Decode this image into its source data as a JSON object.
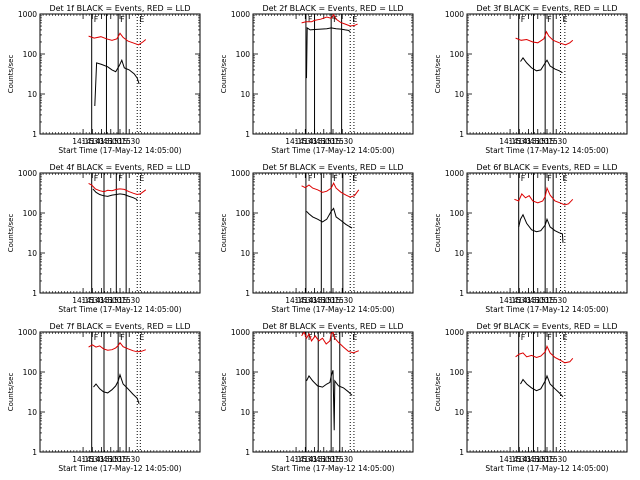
{
  "chart_data": {
    "type": "line",
    "y_scale": "log",
    "ylim": [
      1,
      1000
    ],
    "y_ticks": [
      "1",
      "10",
      "100",
      "1000"
    ],
    "x_ticks": [
      "14:15",
      "14:30",
      "14:45",
      "15:00",
      "15:15",
      "15:30"
    ],
    "xlim_minutes": [
      -55,
      205
    ],
    "tick_minutes": [
      15,
      30,
      45,
      60,
      75,
      90
    ],
    "ylabel": "Counts/sec",
    "xlabel": "Start Time (17-May-12 14:05:00)",
    "colors": {
      "events": "#000000",
      "lld": "#dd0000"
    },
    "flag_labels": [
      "F",
      "F",
      "E"
    ],
    "panels": [
      {
        "title": "Det 1f BLACK = Events, RED = LLD",
        "solid_lines": [
          29,
          53,
          72,
          85
        ],
        "dotted_lines": [
          103,
          108
        ],
        "events": [
          [
            34,
            5
          ],
          [
            37,
            60
          ],
          [
            45,
            55
          ],
          [
            55,
            48
          ],
          [
            62,
            40
          ],
          [
            68,
            36
          ],
          [
            74,
            52
          ],
          [
            78,
            70
          ],
          [
            82,
            45
          ],
          [
            90,
            40
          ],
          [
            98,
            32
          ],
          [
            103,
            25
          ],
          [
            106,
            18
          ]
        ],
        "lld": [
          [
            24,
            280
          ],
          [
            33,
            250
          ],
          [
            44,
            270
          ],
          [
            53,
            240
          ],
          [
            62,
            220
          ],
          [
            70,
            240
          ],
          [
            75,
            330
          ],
          [
            80,
            260
          ],
          [
            88,
            210
          ],
          [
            96,
            190
          ],
          [
            105,
            170
          ],
          [
            112,
            200
          ],
          [
            117,
            230
          ]
        ]
      },
      {
        "title": "Det 2f BLACK = Events, RED = LLD",
        "solid_lines": [
          31,
          45,
          72,
          89
        ],
        "dotted_lines": [
          103,
          109
        ],
        "events": [
          [
            32,
            25
          ],
          [
            33,
            450
          ],
          [
            38,
            400
          ],
          [
            45,
            410
          ],
          [
            55,
            420
          ],
          [
            65,
            430
          ],
          [
            72,
            450
          ],
          [
            80,
            430
          ],
          [
            88,
            420
          ],
          [
            95,
            400
          ],
          [
            100,
            390
          ],
          [
            103,
            360
          ]
        ],
        "lld": [
          [
            24,
            600
          ],
          [
            31,
            640
          ],
          [
            40,
            640
          ],
          [
            45,
            690
          ],
          [
            55,
            740
          ],
          [
            65,
            840
          ],
          [
            72,
            780
          ],
          [
            76,
            970
          ],
          [
            80,
            740
          ],
          [
            88,
            610
          ],
          [
            95,
            560
          ],
          [
            103,
            500
          ],
          [
            110,
            520
          ],
          [
            115,
            560
          ]
        ]
      },
      {
        "title": "Det 3f BLACK = Events, RED = LLD",
        "solid_lines": [
          29,
          53,
          72,
          85
        ],
        "dotted_lines": [
          97,
          104
        ],
        "events": [
          [
            32,
            65
          ],
          [
            36,
            80
          ],
          [
            42,
            60
          ],
          [
            50,
            45
          ],
          [
            58,
            38
          ],
          [
            65,
            40
          ],
          [
            72,
            60
          ],
          [
            75,
            70
          ],
          [
            80,
            50
          ],
          [
            88,
            42
          ],
          [
            95,
            38
          ],
          [
            100,
            34
          ]
        ],
        "lld": [
          [
            24,
            250
          ],
          [
            33,
            220
          ],
          [
            42,
            230
          ],
          [
            52,
            200
          ],
          [
            60,
            190
          ],
          [
            70,
            240
          ],
          [
            74,
            360
          ],
          [
            78,
            280
          ],
          [
            85,
            220
          ],
          [
            95,
            190
          ],
          [
            105,
            170
          ],
          [
            112,
            190
          ],
          [
            117,
            220
          ]
        ]
      },
      {
        "title": "Det 4f BLACK = Events, RED = LLD",
        "solid_lines": [
          29,
          49,
          69,
          85
        ],
        "dotted_lines": [
          103,
          108
        ],
        "events": [
          [
            31,
            400
          ],
          [
            36,
            330
          ],
          [
            42,
            290
          ],
          [
            48,
            270
          ],
          [
            55,
            260
          ],
          [
            62,
            280
          ],
          [
            69,
            290
          ],
          [
            75,
            300
          ],
          [
            82,
            290
          ],
          [
            90,
            260
          ],
          [
            97,
            240
          ],
          [
            102,
            220
          ],
          [
            103,
            200
          ]
        ],
        "lld": [
          [
            24,
            550
          ],
          [
            29,
            500
          ],
          [
            35,
            400
          ],
          [
            42,
            360
          ],
          [
            49,
            340
          ],
          [
            55,
            370
          ],
          [
            62,
            360
          ],
          [
            69,
            390
          ],
          [
            75,
            400
          ],
          [
            82,
            390
          ],
          [
            90,
            340
          ],
          [
            97,
            310
          ],
          [
            103,
            290
          ],
          [
            108,
            300
          ],
          [
            114,
            350
          ],
          [
            117,
            380
          ]
        ]
      },
      {
        "title": "Det 5f BLACK = Events, RED = LLD",
        "solid_lines": [
          31,
          56,
          72,
          91
        ],
        "dotted_lines": [
          103,
          109
        ],
        "events": [
          [
            32,
            110
          ],
          [
            36,
            95
          ],
          [
            42,
            80
          ],
          [
            50,
            70
          ],
          [
            58,
            60
          ],
          [
            65,
            70
          ],
          [
            72,
            110
          ],
          [
            76,
            130
          ],
          [
            80,
            80
          ],
          [
            88,
            65
          ],
          [
            96,
            52
          ],
          [
            103,
            45
          ],
          [
            106,
            42
          ]
        ],
        "lld": [
          [
            24,
            480
          ],
          [
            30,
            430
          ],
          [
            36,
            500
          ],
          [
            42,
            420
          ],
          [
            50,
            380
          ],
          [
            58,
            330
          ],
          [
            65,
            350
          ],
          [
            72,
            420
          ],
          [
            76,
            560
          ],
          [
            80,
            420
          ],
          [
            88,
            330
          ],
          [
            96,
            280
          ],
          [
            103,
            250
          ],
          [
            110,
            270
          ],
          [
            117,
            380
          ]
        ]
      },
      {
        "title": "Det 6f BLACK = Events, RED = LLD",
        "solid_lines": [
          29,
          53,
          72,
          85
        ],
        "dotted_lines": [
          97,
          104
        ],
        "events": [
          [
            29,
            45
          ],
          [
            32,
            70
          ],
          [
            36,
            90
          ],
          [
            42,
            55
          ],
          [
            50,
            38
          ],
          [
            58,
            34
          ],
          [
            65,
            36
          ],
          [
            72,
            50
          ],
          [
            75,
            70
          ],
          [
            80,
            45
          ],
          [
            88,
            36
          ],
          [
            95,
            32
          ],
          [
            100,
            30
          ],
          [
            101,
            18
          ]
        ],
        "lld": [
          [
            22,
            220
          ],
          [
            29,
            200
          ],
          [
            34,
            300
          ],
          [
            40,
            240
          ],
          [
            46,
            270
          ],
          [
            52,
            200
          ],
          [
            60,
            180
          ],
          [
            68,
            200
          ],
          [
            72,
            260
          ],
          [
            75,
            420
          ],
          [
            80,
            280
          ],
          [
            88,
            200
          ],
          [
            96,
            180
          ],
          [
            104,
            160
          ],
          [
            110,
            170
          ],
          [
            117,
            220
          ]
        ]
      },
      {
        "title": "Det 7f BLACK = Events, RED = LLD",
        "solid_lines": [
          29,
          49,
          72,
          85
        ],
        "dotted_lines": [
          103,
          108
        ],
        "events": [
          [
            32,
            42
          ],
          [
            36,
            50
          ],
          [
            42,
            38
          ],
          [
            48,
            32
          ],
          [
            55,
            30
          ],
          [
            62,
            36
          ],
          [
            68,
            45
          ],
          [
            72,
            60
          ],
          [
            75,
            85
          ],
          [
            80,
            50
          ],
          [
            88,
            38
          ],
          [
            96,
            28
          ],
          [
            103,
            22
          ],
          [
            106,
            16
          ]
        ],
        "lld": [
          [
            24,
            420
          ],
          [
            30,
            480
          ],
          [
            36,
            420
          ],
          [
            42,
            450
          ],
          [
            48,
            380
          ],
          [
            55,
            350
          ],
          [
            62,
            360
          ],
          [
            68,
            400
          ],
          [
            72,
            460
          ],
          [
            75,
            540
          ],
          [
            80,
            430
          ],
          [
            88,
            380
          ],
          [
            96,
            340
          ],
          [
            103,
            320
          ],
          [
            110,
            330
          ],
          [
            117,
            360
          ]
        ]
      },
      {
        "title": "Det 8f BLACK = Events, RED = LLD",
        "solid_lines": [
          31,
          51,
          72,
          86
        ],
        "dotted_lines": [
          103,
          109
        ],
        "events": [
          [
            32,
            60
          ],
          [
            36,
            80
          ],
          [
            42,
            60
          ],
          [
            50,
            45
          ],
          [
            58,
            42
          ],
          [
            65,
            50
          ],
          [
            70,
            55
          ],
          [
            72,
            80
          ],
          [
            75,
            110
          ],
          [
            77,
            3.5
          ],
          [
            78,
            60
          ],
          [
            84,
            45
          ],
          [
            92,
            40
          ],
          [
            100,
            32
          ],
          [
            106,
            26
          ]
        ],
        "lld": [
          [
            24,
            800
          ],
          [
            28,
            1000
          ],
          [
            32,
            700
          ],
          [
            36,
            900
          ],
          [
            40,
            600
          ],
          [
            46,
            800
          ],
          [
            52,
            600
          ],
          [
            58,
            700
          ],
          [
            64,
            500
          ],
          [
            70,
            600
          ],
          [
            72,
            900
          ],
          [
            75,
            1000
          ],
          [
            78,
            700
          ],
          [
            84,
            550
          ],
          [
            92,
            420
          ],
          [
            100,
            330
          ],
          [
            108,
            300
          ],
          [
            117,
            340
          ]
        ]
      },
      {
        "title": "Det 9f BLACK = Events, RED = LLD",
        "solid_lines": [
          29,
          53,
          72,
          85
        ],
        "dotted_lines": [
          97,
          104
        ],
        "events": [
          [
            32,
            50
          ],
          [
            36,
            65
          ],
          [
            42,
            50
          ],
          [
            50,
            40
          ],
          [
            58,
            34
          ],
          [
            65,
            38
          ],
          [
            72,
            60
          ],
          [
            75,
            80
          ],
          [
            80,
            50
          ],
          [
            88,
            38
          ],
          [
            95,
            30
          ],
          [
            101,
            24
          ]
        ],
        "lld": [
          [
            24,
            240
          ],
          [
            30,
            280
          ],
          [
            36,
            300
          ],
          [
            42,
            240
          ],
          [
            50,
            260
          ],
          [
            58,
            230
          ],
          [
            65,
            250
          ],
          [
            72,
            320
          ],
          [
            75,
            440
          ],
          [
            80,
            300
          ],
          [
            88,
            230
          ],
          [
            96,
            200
          ],
          [
            104,
            170
          ],
          [
            112,
            180
          ],
          [
            117,
            220
          ]
        ]
      }
    ]
  }
}
